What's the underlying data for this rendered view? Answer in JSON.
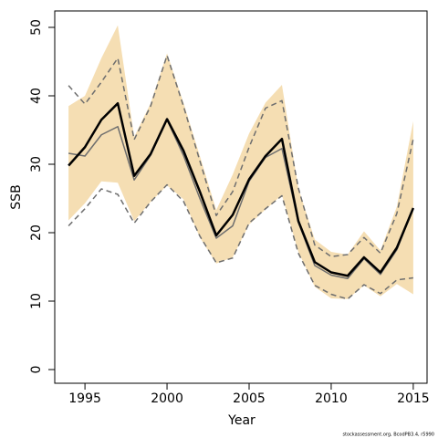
{
  "chart_data": {
    "type": "line",
    "x_label": "Year",
    "y_label": "SSB",
    "footnote": "stockassessment.org, BcodPB3.4, r5990",
    "x": [
      1994,
      1995,
      1996,
      1997,
      1998,
      1999,
      2000,
      2001,
      2002,
      2003,
      2004,
      2005,
      2006,
      2007,
      2008,
      2009,
      2010,
      2011,
      2012,
      2013,
      2014,
      2015
    ],
    "xlim": [
      1993.16,
      2015.84
    ],
    "xticks": [
      1995,
      2000,
      2005,
      2010,
      2015
    ],
    "ylim": [
      -2,
      52.4
    ],
    "yticks": [
      0,
      10,
      20,
      30,
      40,
      50
    ],
    "band": {
      "color": "#f5deb3",
      "upper": [
        38.5,
        40,
        45.5,
        50.3,
        34,
        38.9,
        46.2,
        39,
        31.2,
        23.3,
        28.5,
        34.5,
        39,
        41.6,
        26.5,
        19,
        17.2,
        16.8,
        20.2,
        17.4,
        23.8,
        36.3
      ],
      "lower": [
        21.8,
        24.3,
        27.5,
        27.3,
        21.7,
        24.5,
        26.9,
        24.9,
        19.3,
        15.5,
        16.4,
        21.2,
        23.4,
        25.5,
        17.2,
        12.1,
        10.4,
        10.3,
        12.3,
        10.7,
        12.5,
        11
      ]
    },
    "series": [
      {
        "color": "#6e6e6e",
        "dashed": true,
        "width": 1.5,
        "values": [
          41.5,
          38.8,
          42,
          45.5,
          33.6,
          38.5,
          45.9,
          38.5,
          30.5,
          22.5,
          26,
          32.5,
          38.2,
          39.3,
          26.5,
          18.2,
          16.5,
          16.8,
          19.3,
          17,
          22.8,
          33.7
        ]
      },
      {
        "color": "#6e6e6e",
        "dashed": true,
        "width": 1.5,
        "values": [
          21,
          23.5,
          26.4,
          25.6,
          21.4,
          24.5,
          27,
          24.6,
          19.5,
          15.6,
          16.3,
          21.4,
          23.5,
          25.4,
          17,
          12.3,
          11,
          10.3,
          12.4,
          11.1,
          13.1,
          13.4
        ]
      },
      {
        "color": "#6e6e6e",
        "dashed": false,
        "width": 1.5,
        "values": [
          31.6,
          31.2,
          34.3,
          35.5,
          27.7,
          31.3,
          36.5,
          31.3,
          25,
          19.2,
          21,
          27.5,
          31,
          32.3,
          21.5,
          15.2,
          13.8,
          13.3,
          16.2,
          13.9,
          17.5,
          23.6
        ]
      },
      {
        "color": "#000000",
        "dashed": false,
        "width": 2.5,
        "values": [
          29.8,
          32.5,
          36.5,
          38.9,
          28.3,
          31.5,
          36.6,
          32,
          26,
          19.6,
          22.6,
          27.8,
          31.2,
          33.7,
          21.7,
          15.7,
          14.2,
          13.7,
          16.4,
          14.2,
          17.8,
          23.6
        ]
      }
    ]
  }
}
